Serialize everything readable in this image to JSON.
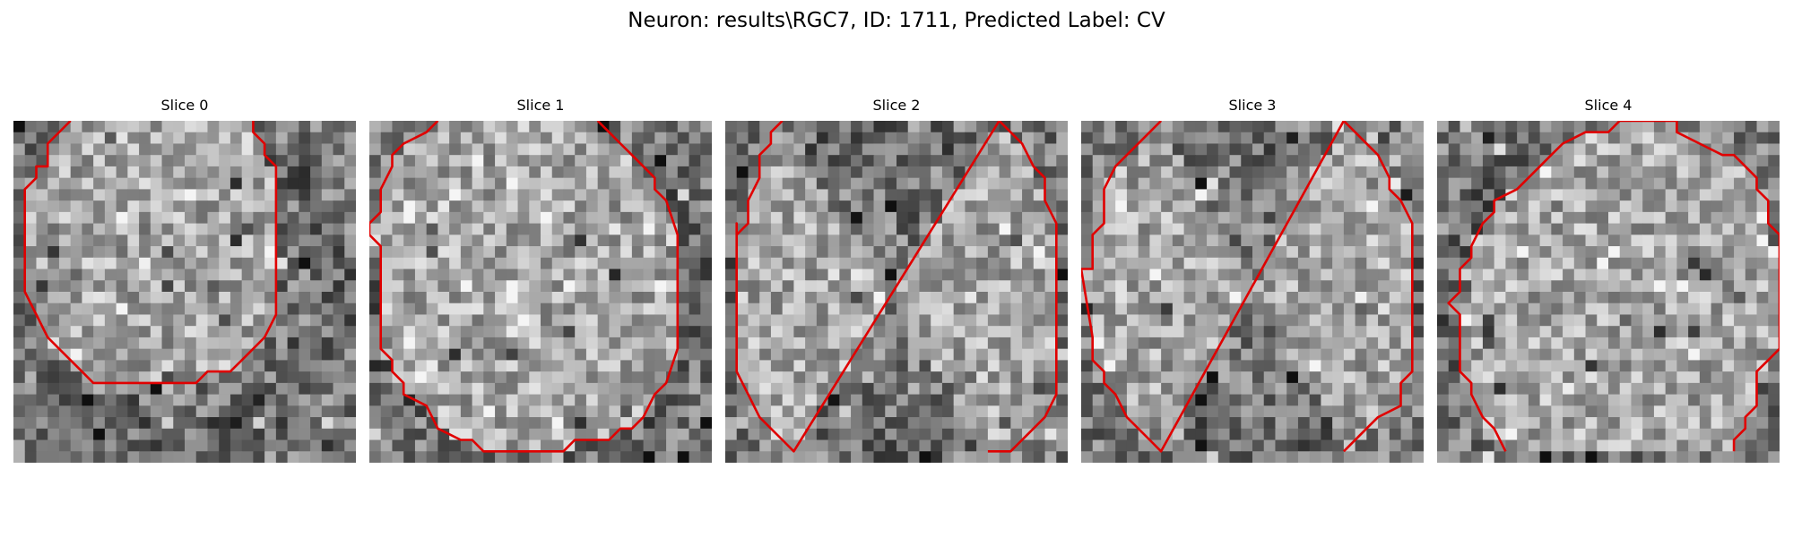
{
  "figure": {
    "title": "Neuron: results\\RGC7, ID: 1711, Predicted Label: CV"
  },
  "panels": [
    {
      "title": "Slice 0",
      "contour_color": "#e00000",
      "image_content": "grayscale-noise-grid",
      "grid_size": [
        30,
        30
      ],
      "contour": [
        [
          5,
          0
        ],
        [
          3,
          2
        ],
        [
          3,
          4
        ],
        [
          2,
          4
        ],
        [
          2,
          5
        ],
        [
          1,
          6
        ],
        [
          1,
          8
        ],
        [
          1,
          12
        ],
        [
          1,
          15
        ],
        [
          2,
          17
        ],
        [
          3,
          19
        ],
        [
          4,
          20
        ],
        [
          5,
          21
        ],
        [
          6,
          22
        ],
        [
          7,
          23
        ],
        [
          8,
          23
        ],
        [
          16,
          23
        ],
        [
          17,
          22
        ],
        [
          19,
          22
        ],
        [
          20,
          21
        ],
        [
          21,
          20
        ],
        [
          22,
          19
        ],
        [
          23,
          17
        ],
        [
          23,
          15
        ],
        [
          23,
          12
        ],
        [
          23,
          8
        ],
        [
          23,
          4
        ],
        [
          22,
          3
        ],
        [
          22,
          2
        ],
        [
          21,
          1
        ],
        [
          21,
          0
        ]
      ]
    },
    {
      "title": "Slice 1",
      "contour_color": "#e00000",
      "image_content": "grayscale-noise-grid",
      "grid_size": [
        30,
        30
      ],
      "contour": [
        [
          6,
          0
        ],
        [
          5,
          1
        ],
        [
          3,
          2
        ],
        [
          2,
          3
        ],
        [
          2,
          4
        ],
        [
          1,
          6
        ],
        [
          1,
          8
        ],
        [
          0,
          9
        ],
        [
          0,
          10
        ],
        [
          1,
          11
        ],
        [
          1,
          16
        ],
        [
          1,
          18
        ],
        [
          1,
          20
        ],
        [
          2,
          21
        ],
        [
          2,
          22
        ],
        [
          3,
          23
        ],
        [
          3,
          24
        ],
        [
          5,
          25
        ],
        [
          6,
          27
        ],
        [
          8,
          28
        ],
        [
          9,
          28
        ],
        [
          10,
          29
        ],
        [
          17,
          29
        ],
        [
          18,
          28
        ],
        [
          21,
          28
        ],
        [
          22,
          27
        ],
        [
          23,
          27
        ],
        [
          24,
          26
        ],
        [
          25,
          24
        ],
        [
          26,
          23
        ],
        [
          27,
          20
        ],
        [
          27,
          10
        ],
        [
          26,
          7
        ],
        [
          25,
          6
        ],
        [
          25,
          5
        ],
        [
          24,
          4
        ],
        [
          23,
          3
        ],
        [
          22,
          2
        ],
        [
          21,
          1
        ],
        [
          20,
          0
        ]
      ]
    },
    {
      "title": "Slice 2",
      "contour_color": "#e00000",
      "image_content": "grayscale-noise-grid",
      "grid_size": [
        30,
        30
      ],
      "contour": [
        [
          5,
          0
        ],
        [
          4,
          1
        ],
        [
          4,
          2
        ],
        [
          3,
          3
        ],
        [
          3,
          5
        ],
        [
          2,
          7
        ],
        [
          2,
          9
        ],
        [
          1,
          10
        ],
        [
          1,
          9
        ],
        [
          1,
          20
        ],
        [
          1,
          22
        ],
        [
          2,
          24
        ],
        [
          3,
          26
        ],
        [
          4,
          27
        ],
        [
          5,
          28
        ],
        [
          6,
          29
        ],
        [
          24,
          0
        ],
        [
          25,
          1
        ],
        [
          26,
          2
        ],
        [
          27,
          4
        ],
        [
          28,
          5
        ],
        [
          28,
          7
        ],
        [
          29,
          9
        ],
        [
          29,
          24
        ],
        [
          28,
          26
        ],
        [
          27,
          27
        ],
        [
          26,
          28
        ],
        [
          25,
          29
        ],
        [
          23,
          29
        ]
      ]
    },
    {
      "title": "Slice 3",
      "contour_color": "#e00000",
      "image_content": "grayscale-noise-grid",
      "grid_size": [
        30,
        30
      ],
      "contour": [
        [
          7,
          0
        ],
        [
          6,
          1
        ],
        [
          4,
          3
        ],
        [
          3,
          4
        ],
        [
          2,
          6
        ],
        [
          2,
          9
        ],
        [
          1,
          10
        ],
        [
          1,
          13
        ],
        [
          0,
          13
        ],
        [
          1,
          19
        ],
        [
          1,
          21
        ],
        [
          2,
          22
        ],
        [
          2,
          23
        ],
        [
          3,
          24
        ],
        [
          4,
          26
        ],
        [
          5,
          27
        ],
        [
          6,
          28
        ],
        [
          7,
          29
        ],
        [
          23,
          0
        ],
        [
          24,
          1
        ],
        [
          26,
          3
        ],
        [
          27,
          5
        ],
        [
          27,
          6
        ],
        [
          28,
          7
        ],
        [
          29,
          9
        ],
        [
          29,
          22
        ],
        [
          28,
          23
        ],
        [
          28,
          25
        ],
        [
          26,
          26
        ],
        [
          25,
          27
        ],
        [
          23,
          29
        ]
      ]
    },
    {
      "title": "Slice 4",
      "contour_color": "#e00000",
      "image_content": "grayscale-noise-grid",
      "grid_size": [
        30,
        30
      ],
      "contour": [
        [
          6,
          29
        ],
        [
          5,
          27
        ],
        [
          4,
          26
        ],
        [
          3,
          24
        ],
        [
          3,
          23
        ],
        [
          2,
          22
        ],
        [
          2,
          20
        ],
        [
          2,
          17
        ],
        [
          1,
          16
        ],
        [
          2,
          15
        ],
        [
          2,
          13
        ],
        [
          3,
          12
        ],
        [
          3,
          11
        ],
        [
          4,
          9
        ],
        [
          5,
          8
        ],
        [
          5,
          7
        ],
        [
          7,
          6
        ],
        [
          9,
          4
        ],
        [
          10,
          3
        ],
        [
          11,
          2
        ],
        [
          13,
          1
        ],
        [
          15,
          1
        ],
        [
          16,
          0
        ],
        [
          21,
          0
        ],
        [
          21,
          1
        ],
        [
          23,
          2
        ],
        [
          25,
          3
        ],
        [
          26,
          3
        ],
        [
          27,
          4
        ],
        [
          28,
          5
        ],
        [
          28,
          6
        ],
        [
          29,
          7
        ],
        [
          29,
          9
        ],
        [
          30,
          10
        ],
        [
          30,
          12
        ],
        [
          30,
          20
        ],
        [
          29,
          21
        ],
        [
          28,
          22
        ],
        [
          28,
          25
        ],
        [
          27,
          26
        ],
        [
          27,
          27
        ],
        [
          26,
          28
        ],
        [
          26,
          29
        ]
      ]
    }
  ]
}
